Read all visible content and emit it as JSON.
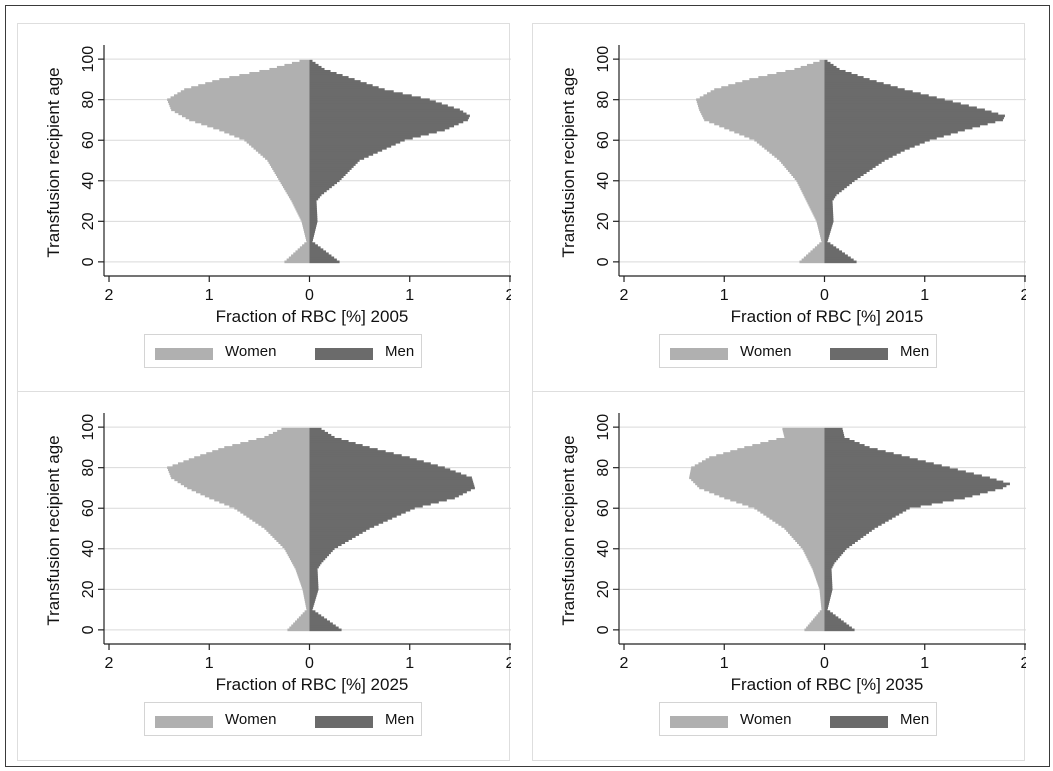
{
  "colors": {
    "women": "#b0b0b0",
    "men": "#6b6b6b",
    "grid": "#d9d9d9",
    "axis": "#222222"
  },
  "chart_data": [
    {
      "type": "bar",
      "orientation": "horizontal-population-pyramid",
      "title": "",
      "xlabel": "Fraction of RBC [%] 2005",
      "ylabel": "Transfusion recipient age",
      "xlim": [
        -2.05,
        2.1
      ],
      "ylim": [
        -5,
        105
      ],
      "xticks": [
        -2,
        -1,
        0,
        1,
        2
      ],
      "xtick_labels": [
        "2",
        "1",
        "0",
        "1",
        "2"
      ],
      "yticks": [
        0,
        20,
        40,
        60,
        80,
        100
      ],
      "ytick_labels": [
        "0",
        "20",
        "40",
        "60",
        "80",
        "100"
      ],
      "grid": true,
      "legend": "bottom",
      "series": [
        {
          "name": "Women",
          "age": [
            0,
            10,
            20,
            30,
            40,
            50,
            60,
            65,
            70,
            75,
            80,
            85,
            90,
            95,
            99
          ],
          "values": [
            0.25,
            0.03,
            0.08,
            0.18,
            0.3,
            0.42,
            0.65,
            0.9,
            1.2,
            1.38,
            1.42,
            1.25,
            0.9,
            0.4,
            0.1
          ]
        },
        {
          "name": "Men",
          "age": [
            0,
            10,
            20,
            30,
            33,
            40,
            50,
            60,
            65,
            70,
            72,
            75,
            80,
            85,
            90,
            95,
            99
          ],
          "values": [
            0.3,
            0.03,
            0.08,
            0.07,
            0.12,
            0.3,
            0.5,
            0.95,
            1.35,
            1.58,
            1.6,
            1.5,
            1.2,
            0.75,
            0.45,
            0.15,
            0.03
          ]
        }
      ]
    },
    {
      "type": "bar",
      "orientation": "horizontal-population-pyramid",
      "title": "",
      "xlabel": "Fraction of RBC [%] 2015",
      "ylabel": "Transfusion recipient age",
      "xlim": [
        -2.05,
        2.1
      ],
      "ylim": [
        -5,
        105
      ],
      "xticks": [
        -2,
        -1,
        0,
        1,
        2
      ],
      "xtick_labels": [
        "2",
        "1",
        "0",
        "1",
        "2"
      ],
      "yticks": [
        0,
        20,
        40,
        60,
        80,
        100
      ],
      "ytick_labels": [
        "0",
        "20",
        "40",
        "60",
        "80",
        "100"
      ],
      "grid": true,
      "legend": "bottom",
      "series": [
        {
          "name": "Women",
          "age": [
            0,
            10,
            20,
            30,
            40,
            50,
            60,
            65,
            70,
            75,
            80,
            85,
            90,
            95,
            99
          ],
          "values": [
            0.25,
            0.03,
            0.08,
            0.18,
            0.28,
            0.45,
            0.7,
            0.95,
            1.2,
            1.25,
            1.28,
            1.1,
            0.75,
            0.3,
            0.05
          ]
        },
        {
          "name": "Men",
          "age": [
            0,
            10,
            20,
            30,
            33,
            40,
            50,
            55,
            60,
            65,
            70,
            72,
            75,
            80,
            85,
            90,
            95,
            99
          ],
          "values": [
            0.32,
            0.03,
            0.09,
            0.08,
            0.12,
            0.3,
            0.6,
            0.8,
            1.05,
            1.4,
            1.78,
            1.8,
            1.6,
            1.2,
            0.8,
            0.45,
            0.15,
            0.03
          ]
        }
      ]
    },
    {
      "type": "bar",
      "orientation": "horizontal-population-pyramid",
      "title": "",
      "xlabel": "Fraction of RBC [%] 2025",
      "ylabel": "Transfusion recipient age",
      "xlim": [
        -2.05,
        2.1
      ],
      "ylim": [
        -5,
        105
      ],
      "xticks": [
        -2,
        -1,
        0,
        1,
        2
      ],
      "xtick_labels": [
        "2",
        "1",
        "0",
        "1",
        "2"
      ],
      "yticks": [
        0,
        20,
        40,
        60,
        80,
        100
      ],
      "ytick_labels": [
        "0",
        "20",
        "40",
        "60",
        "80",
        "100"
      ],
      "grid": true,
      "legend": "bottom",
      "series": [
        {
          "name": "Women",
          "age": [
            0,
            10,
            20,
            30,
            40,
            50,
            60,
            65,
            70,
            75,
            80,
            85,
            90,
            95,
            99
          ],
          "values": [
            0.22,
            0.03,
            0.07,
            0.14,
            0.25,
            0.45,
            0.75,
            1.0,
            1.22,
            1.38,
            1.42,
            1.15,
            0.85,
            0.45,
            0.28
          ]
        },
        {
          "name": "Men",
          "age": [
            0,
            10,
            20,
            30,
            33,
            40,
            50,
            60,
            65,
            70,
            75,
            80,
            85,
            90,
            95,
            99
          ],
          "values": [
            0.32,
            0.03,
            0.09,
            0.08,
            0.12,
            0.25,
            0.6,
            1.05,
            1.45,
            1.65,
            1.62,
            1.35,
            1.0,
            0.6,
            0.25,
            0.12
          ]
        }
      ]
    },
    {
      "type": "bar",
      "orientation": "horizontal-population-pyramid",
      "title": "",
      "xlabel": "Fraction of RBC [%] 2035",
      "ylabel": "Transfusion recipient age",
      "xlim": [
        -2.05,
        2.1
      ],
      "ylim": [
        -5,
        105
      ],
      "xticks": [
        -2,
        -1,
        0,
        1,
        2
      ],
      "xtick_labels": [
        "2",
        "1",
        "0",
        "1",
        "2"
      ],
      "yticks": [
        0,
        20,
        40,
        60,
        80,
        100
      ],
      "ytick_labels": [
        "0",
        "20",
        "40",
        "60",
        "80",
        "100"
      ],
      "grid": true,
      "legend": "bottom",
      "series": [
        {
          "name": "Women",
          "age": [
            0,
            10,
            20,
            30,
            40,
            50,
            60,
            65,
            70,
            75,
            80,
            85,
            90,
            95,
            99
          ],
          "values": [
            0.2,
            0.03,
            0.05,
            0.12,
            0.22,
            0.4,
            0.7,
            1.0,
            1.25,
            1.35,
            1.33,
            1.15,
            0.8,
            0.4,
            0.42
          ]
        },
        {
          "name": "Men",
          "age": [
            0,
            10,
            20,
            30,
            33,
            40,
            50,
            60,
            65,
            70,
            72,
            75,
            80,
            85,
            90,
            95,
            99
          ],
          "values": [
            0.3,
            0.03,
            0.08,
            0.07,
            0.1,
            0.22,
            0.5,
            0.85,
            1.4,
            1.78,
            1.85,
            1.65,
            1.25,
            0.85,
            0.45,
            0.2,
            0.18
          ]
        }
      ]
    }
  ]
}
